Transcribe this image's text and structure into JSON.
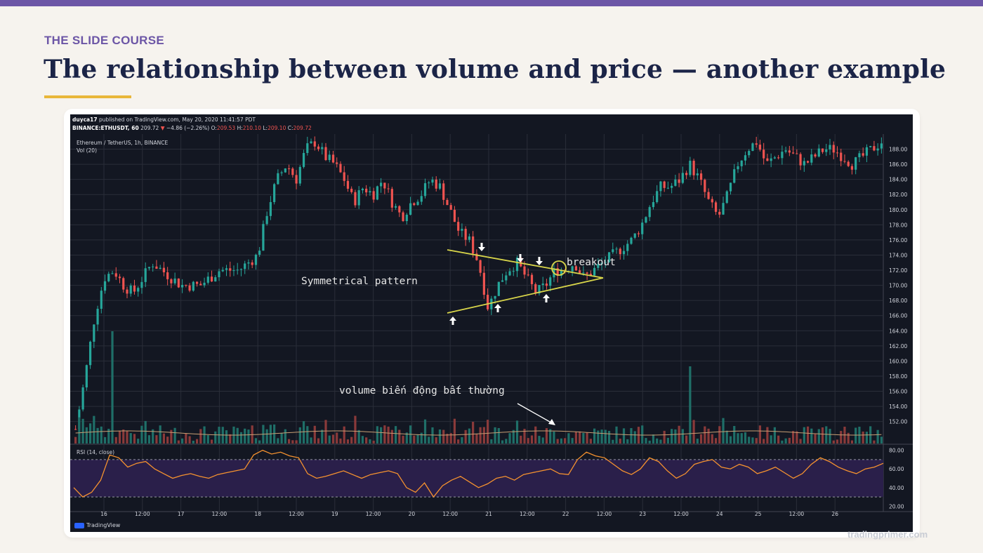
{
  "slide": {
    "kicker": "THE SLIDE COURSE",
    "title": "The relationship between volume and price — another example",
    "footer": "tradingprimer.com",
    "accent_color": "#e9b73a",
    "brand_color": "#6c56a6"
  },
  "chart_header": {
    "author": "duyca17",
    "published": "published on TradingView.com, May 20, 2020 11:41:57 PDT",
    "ticker": "BINANCE:ETHUSDT, 60",
    "last": "209.72",
    "change": "−4.86 (−2.26%)",
    "o_label": "O:",
    "o_val": "209.53",
    "h_label": "H:",
    "h_val": "210.10",
    "l_label": "L:",
    "l_val": "209.10",
    "c_label": "C:",
    "c_val": "209.72",
    "symbol": "Ethereum / TetherUS, 1h, BINANCE",
    "vol_label": "Vol (20)",
    "rsi_label": "RSI (14, close)",
    "logo_text": "TradingView"
  },
  "annotations": {
    "pattern": "Symmetrical pattern",
    "breakout": "breakout",
    "volume": "volume biến động bất thường"
  },
  "chart_data": {
    "type": "line",
    "title": "",
    "series_name": "Ethereum / TetherUS, 1h",
    "price_axis": {
      "ylim": [
        149,
        190
      ],
      "ticks": [
        "188.00",
        "186.00",
        "184.00",
        "182.00",
        "180.00",
        "178.00",
        "176.00",
        "174.00",
        "172.00",
        "170.00",
        "168.00",
        "166.00",
        "164.00",
        "162.00",
        "160.00",
        "158.00",
        "156.00",
        "154.00",
        "152.00"
      ]
    },
    "rsi_axis": {
      "ylim": [
        15,
        85
      ],
      "ticks": [
        "80.00",
        "60.00",
        "40.00",
        "20.00"
      ],
      "bands": [
        30,
        70
      ]
    },
    "x_ticks": [
      "16",
      "12:00",
      "17",
      "12:00",
      "18",
      "12:00",
      "19",
      "12:00",
      "20",
      "12:00",
      "21",
      "12:00",
      "22",
      "12:00",
      "23",
      "12:00",
      "24",
      "25",
      "12:00",
      "26"
    ],
    "close_path": [
      151,
      158,
      166,
      171,
      172,
      170,
      169,
      171,
      173,
      172,
      171,
      170,
      170,
      170,
      171,
      172,
      172,
      172,
      173,
      174,
      180,
      184,
      186,
      184,
      188,
      189,
      187,
      186,
      184,
      181,
      183,
      182,
      184,
      181,
      179,
      181,
      182,
      184,
      183,
      180,
      177,
      176,
      173,
      167,
      170,
      172,
      173,
      171,
      169,
      170,
      172,
      172,
      173,
      171,
      172,
      173,
      174,
      175,
      176,
      178,
      181,
      183,
      183,
      184,
      186,
      184,
      181,
      179,
      182,
      186,
      188,
      189,
      186,
      187,
      188,
      187,
      186,
      187,
      188,
      188,
      187,
      186,
      187,
      188,
      189
    ],
    "rsi_path": [
      40,
      30,
      35,
      48,
      75,
      72,
      62,
      66,
      68,
      60,
      55,
      50,
      53,
      55,
      52,
      50,
      54,
      56,
      58,
      60,
      75,
      80,
      76,
      78,
      74,
      72,
      55,
      50,
      52,
      55,
      58,
      54,
      50,
      54,
      56,
      58,
      55,
      40,
      35,
      45,
      30,
      42,
      48,
      52,
      46,
      40,
      44,
      50,
      52,
      48,
      54,
      56,
      58,
      60,
      55,
      54,
      70,
      78,
      74,
      72,
      65,
      58,
      54,
      60,
      72,
      68,
      58,
      50,
      55,
      65,
      68,
      70,
      62,
      60,
      65,
      62,
      55,
      58,
      62,
      56,
      50,
      55,
      65,
      72,
      68,
      62,
      58,
      55,
      60,
      62,
      66
    ]
  },
  "colors": {
    "bg": "#131722",
    "grid": "#2a2e39",
    "up": "#26a69a",
    "down": "#ef5350",
    "pattern_lines": "#d9d64a",
    "rsi_line": "#f5922f",
    "rsi_band": "#2a1f4a",
    "ma_line": "#c89f74"
  }
}
